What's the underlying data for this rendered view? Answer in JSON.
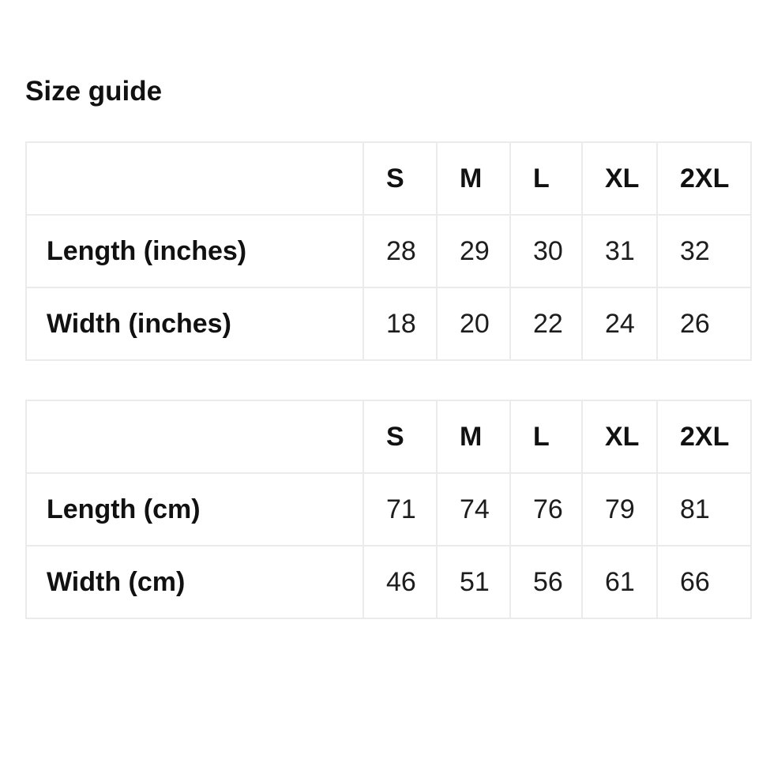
{
  "page": {
    "title": "Size guide"
  },
  "size_columns": [
    "S",
    "M",
    "L",
    "XL",
    "2XL"
  ],
  "tables": [
    {
      "id": "inches",
      "rows": [
        {
          "label": "Length (inches)",
          "values": [
            "28",
            "29",
            "30",
            "31",
            "32"
          ]
        },
        {
          "label": "Width (inches)",
          "values": [
            "18",
            "20",
            "22",
            "24",
            "26"
          ]
        }
      ]
    },
    {
      "id": "cm",
      "rows": [
        {
          "label": "Length (cm)",
          "values": [
            "71",
            "74",
            "76",
            "79",
            "81"
          ]
        },
        {
          "label": "Width (cm)",
          "values": [
            "46",
            "51",
            "56",
            "61",
            "66"
          ]
        }
      ]
    }
  ],
  "colors": {
    "background": "#ffffff",
    "text": "#171717",
    "heading_text": "#111111",
    "border": "#ebebeb"
  }
}
